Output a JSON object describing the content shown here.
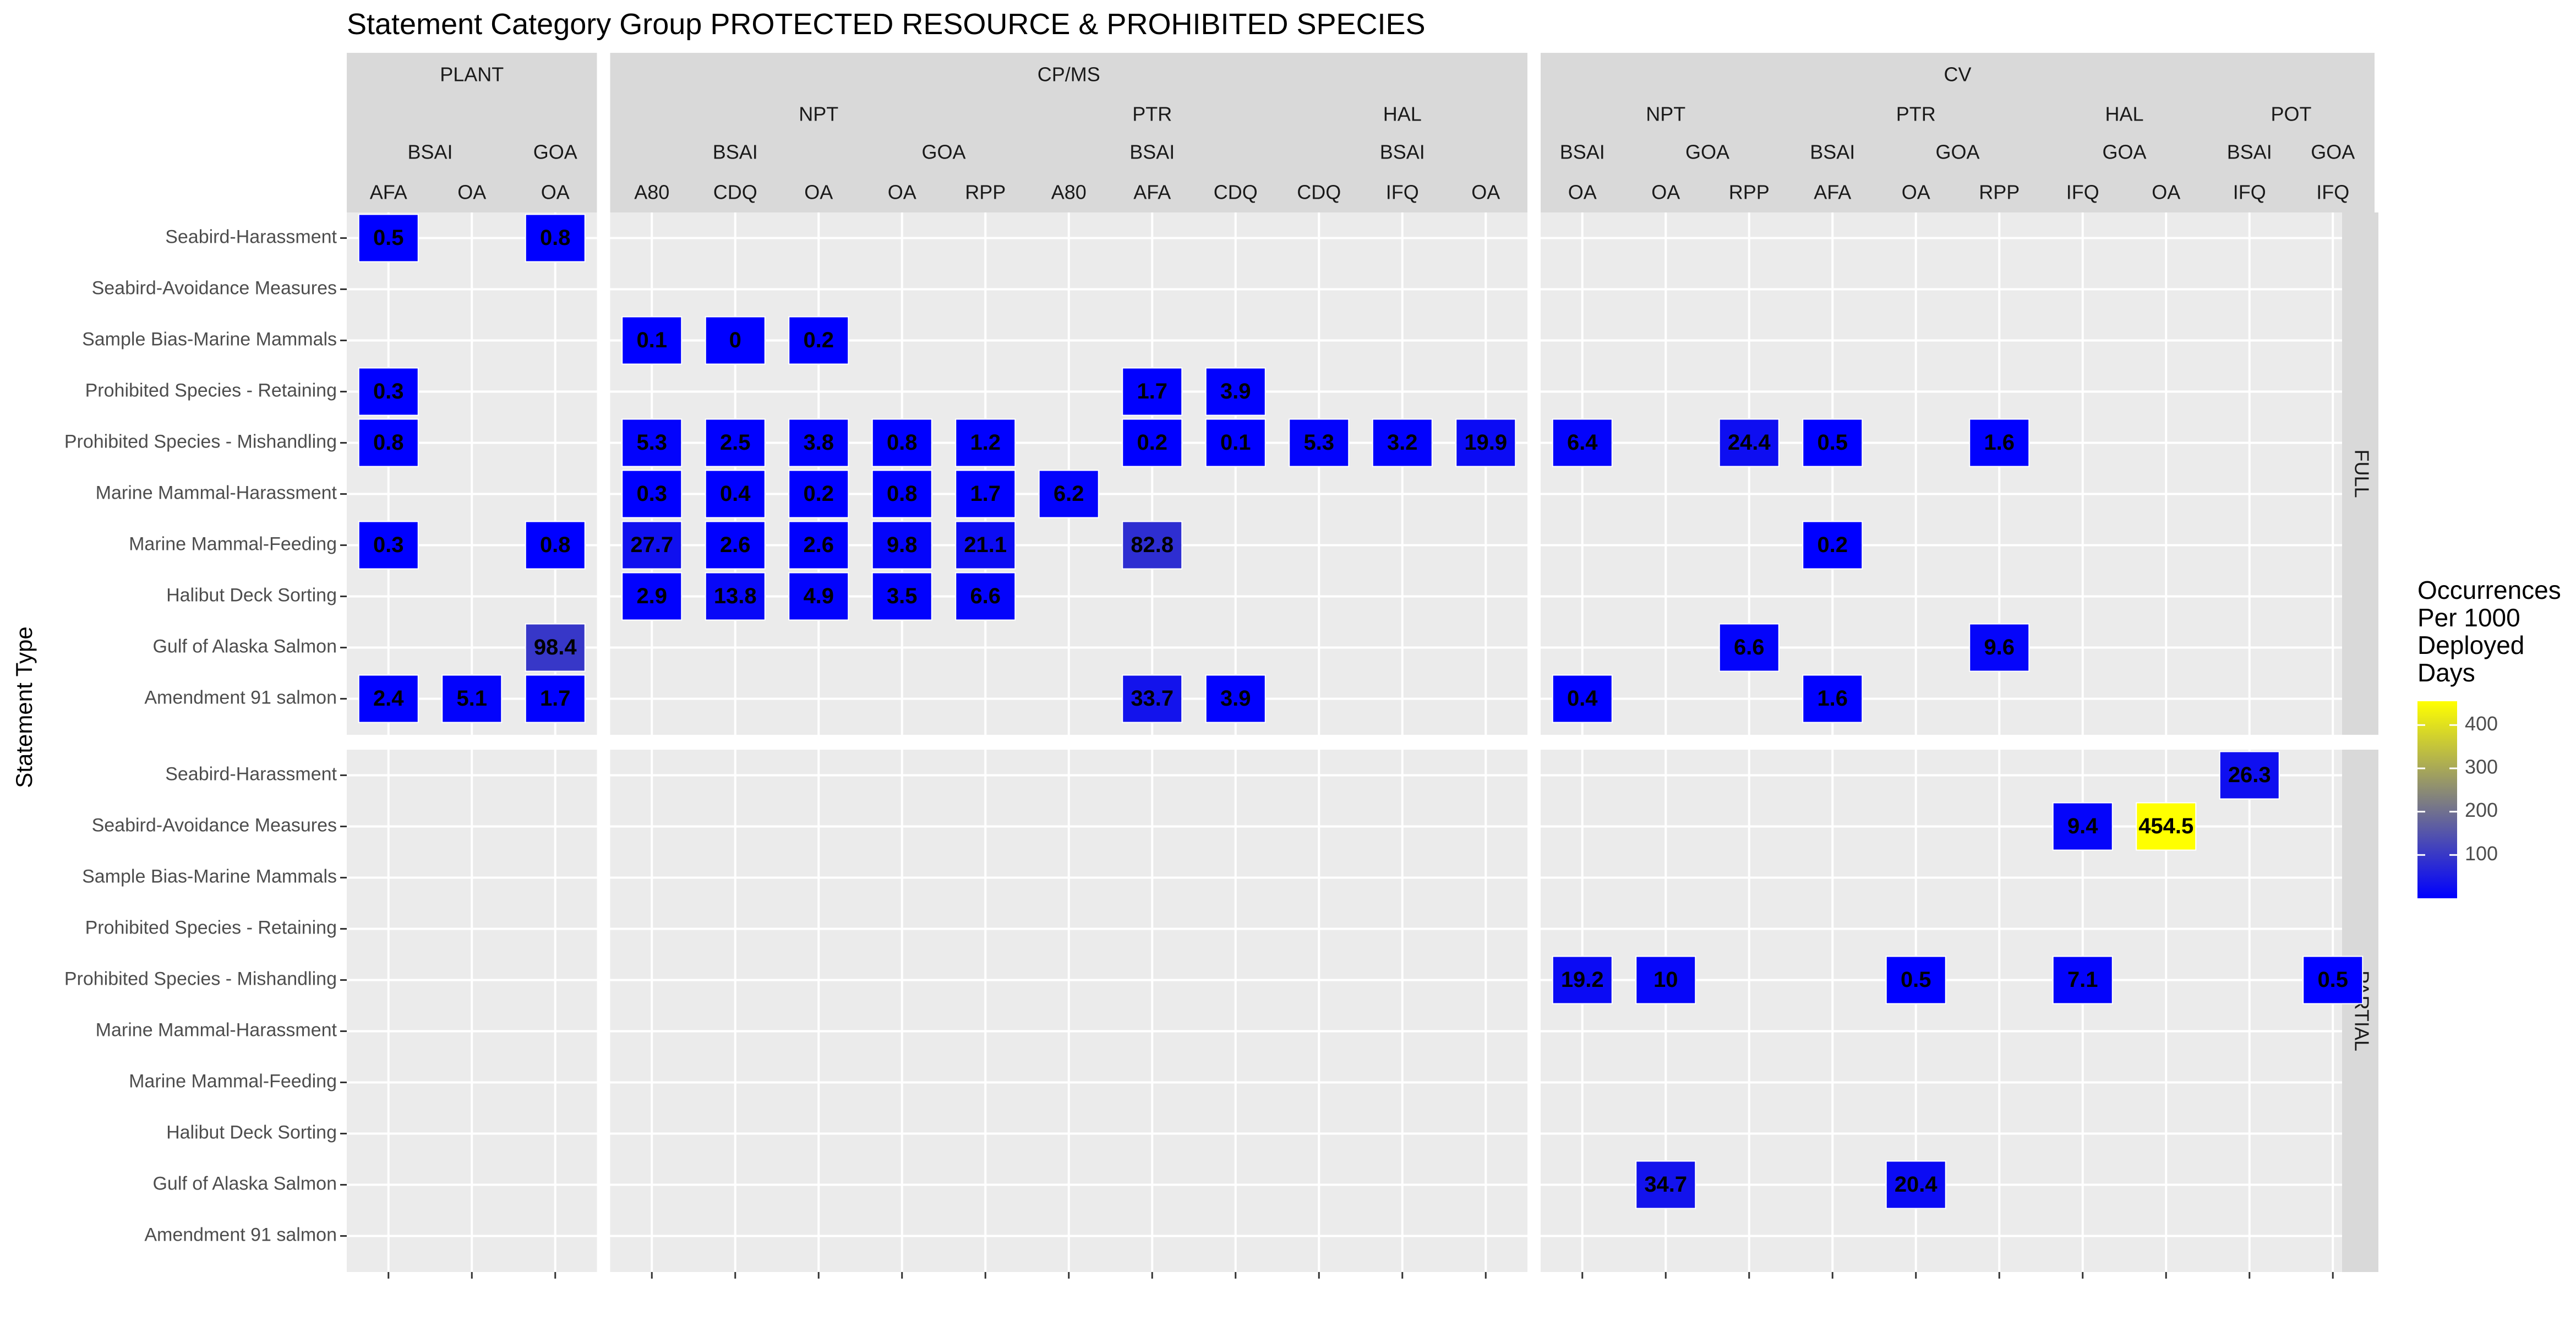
{
  "chart_data": {
    "type": "heatmap",
    "title": "Statement Category Group  PROTECTED RESOURCE & PROHIBITED SPECIES",
    "ylabel": "Statement Type",
    "xlabel": "",
    "legend": {
      "title_lines": [
        "Occurrences",
        "Per 1000",
        "Deployed",
        "Days"
      ],
      "ticks": [
        100,
        200,
        300,
        400
      ],
      "range": [
        0,
        455
      ],
      "colors": [
        "#0000ff",
        "#ffff00"
      ],
      "placement": "right"
    },
    "grid": true,
    "panels": [
      "FULL",
      "PARTIAL"
    ],
    "statement_types": [
      "Seabird-Harassment",
      "Seabird-Avoidance Measures",
      "Sample Bias-Marine Mammals",
      "Prohibited Species - Retaining",
      "Prohibited Species - Mishandling",
      "Marine Mammal-Harassment",
      "Marine Mammal-Feeding",
      "Halibut Deck Sorting",
      "Gulf of Alaska Salmon",
      "Amendment 91 salmon"
    ],
    "groups": [
      {
        "name": "PLANT",
        "subgroups": [
          {
            "name": "",
            "regions": [
              {
                "name": "BSAI",
                "codes": [
                  "AFA",
                  "OA"
                ]
              },
              {
                "name": "GOA",
                "codes": [
                  "OA"
                ]
              }
            ]
          }
        ]
      },
      {
        "name": "CP/MS",
        "subgroups": [
          {
            "name": "NPT",
            "regions": [
              {
                "name": "BSAI",
                "codes": [
                  "A80",
                  "CDQ",
                  "OA"
                ]
              },
              {
                "name": "GOA",
                "codes": [
                  "OA",
                  "RPP"
                ]
              }
            ]
          },
          {
            "name": "PTR",
            "regions": [
              {
                "name": "BSAI",
                "codes": [
                  "A80",
                  "AFA",
                  "CDQ"
                ]
              }
            ]
          },
          {
            "name": "HAL",
            "regions": [
              {
                "name": "BSAI",
                "codes": [
                  "CDQ",
                  "IFQ",
                  "OA"
                ]
              }
            ]
          }
        ]
      },
      {
        "name": "CV",
        "subgroups": [
          {
            "name": "NPT",
            "regions": [
              {
                "name": "BSAI",
                "codes": [
                  "OA"
                ]
              },
              {
                "name": "GOA",
                "codes": [
                  "OA",
                  "RPP"
                ]
              }
            ]
          },
          {
            "name": "PTR",
            "regions": [
              {
                "name": "BSAI",
                "codes": [
                  "AFA"
                ]
              },
              {
                "name": "GOA",
                "codes": [
                  "OA",
                  "RPP"
                ]
              }
            ]
          },
          {
            "name": "HAL",
            "regions": [
              {
                "name": "GOA",
                "codes": [
                  "IFQ",
                  "OA"
                ]
              }
            ]
          },
          {
            "name": "POT",
            "regions": [
              {
                "name": "BSAI",
                "codes": [
                  "IFQ"
                ]
              },
              {
                "name": "GOA",
                "codes": [
                  "IFQ"
                ]
              }
            ]
          }
        ]
      }
    ],
    "cells": [
      {
        "panel": "FULL",
        "row": 0,
        "col": 0,
        "value": 0.5
      },
      {
        "panel": "FULL",
        "row": 0,
        "col": 2,
        "value": 0.8
      },
      {
        "panel": "FULL",
        "row": 2,
        "col": 3,
        "value": 0.1
      },
      {
        "panel": "FULL",
        "row": 2,
        "col": 4,
        "value": 0
      },
      {
        "panel": "FULL",
        "row": 2,
        "col": 5,
        "value": 0.2
      },
      {
        "panel": "FULL",
        "row": 3,
        "col": 0,
        "value": 0.3
      },
      {
        "panel": "FULL",
        "row": 3,
        "col": 9,
        "value": 1.7
      },
      {
        "panel": "FULL",
        "row": 3,
        "col": 10,
        "value": 3.9
      },
      {
        "panel": "FULL",
        "row": 4,
        "col": 0,
        "value": 0.8
      },
      {
        "panel": "FULL",
        "row": 4,
        "col": 3,
        "value": 5.3
      },
      {
        "panel": "FULL",
        "row": 4,
        "col": 4,
        "value": 2.5
      },
      {
        "panel": "FULL",
        "row": 4,
        "col": 5,
        "value": 3.8
      },
      {
        "panel": "FULL",
        "row": 4,
        "col": 6,
        "value": 0.8
      },
      {
        "panel": "FULL",
        "row": 4,
        "col": 7,
        "value": 1.2
      },
      {
        "panel": "FULL",
        "row": 4,
        "col": 9,
        "value": 0.2
      },
      {
        "panel": "FULL",
        "row": 4,
        "col": 10,
        "value": 0.1
      },
      {
        "panel": "FULL",
        "row": 4,
        "col": 11,
        "value": 5.3
      },
      {
        "panel": "FULL",
        "row": 4,
        "col": 12,
        "value": 3.2
      },
      {
        "panel": "FULL",
        "row": 4,
        "col": 13,
        "value": 19.9
      },
      {
        "panel": "FULL",
        "row": 4,
        "col": 14,
        "value": 6.4
      },
      {
        "panel": "FULL",
        "row": 4,
        "col": 16,
        "value": 24.4
      },
      {
        "panel": "FULL",
        "row": 4,
        "col": 17,
        "value": 0.5
      },
      {
        "panel": "FULL",
        "row": 4,
        "col": 19,
        "value": 1.6
      },
      {
        "panel": "FULL",
        "row": 5,
        "col": 3,
        "value": 0.3
      },
      {
        "panel": "FULL",
        "row": 5,
        "col": 4,
        "value": 0.4
      },
      {
        "panel": "FULL",
        "row": 5,
        "col": 5,
        "value": 0.2
      },
      {
        "panel": "FULL",
        "row": 5,
        "col": 6,
        "value": 0.8
      },
      {
        "panel": "FULL",
        "row": 5,
        "col": 7,
        "value": 1.7
      },
      {
        "panel": "FULL",
        "row": 5,
        "col": 8,
        "value": 6.2
      },
      {
        "panel": "FULL",
        "row": 6,
        "col": 0,
        "value": 0.3
      },
      {
        "panel": "FULL",
        "row": 6,
        "col": 2,
        "value": 0.8
      },
      {
        "panel": "FULL",
        "row": 6,
        "col": 3,
        "value": 27.7
      },
      {
        "panel": "FULL",
        "row": 6,
        "col": 4,
        "value": 2.6
      },
      {
        "panel": "FULL",
        "row": 6,
        "col": 5,
        "value": 2.6
      },
      {
        "panel": "FULL",
        "row": 6,
        "col": 6,
        "value": 9.8
      },
      {
        "panel": "FULL",
        "row": 6,
        "col": 7,
        "value": 21.1
      },
      {
        "panel": "FULL",
        "row": 6,
        "col": 9,
        "value": 82.8
      },
      {
        "panel": "FULL",
        "row": 6,
        "col": 17,
        "value": 0.2
      },
      {
        "panel": "FULL",
        "row": 7,
        "col": 3,
        "value": 2.9
      },
      {
        "panel": "FULL",
        "row": 7,
        "col": 4,
        "value": 13.8
      },
      {
        "panel": "FULL",
        "row": 7,
        "col": 5,
        "value": 4.9
      },
      {
        "panel": "FULL",
        "row": 7,
        "col": 6,
        "value": 3.5
      },
      {
        "panel": "FULL",
        "row": 7,
        "col": 7,
        "value": 6.6
      },
      {
        "panel": "FULL",
        "row": 8,
        "col": 2,
        "value": 98.4
      },
      {
        "panel": "FULL",
        "row": 8,
        "col": 16,
        "value": 6.6
      },
      {
        "panel": "FULL",
        "row": 8,
        "col": 19,
        "value": 9.6
      },
      {
        "panel": "FULL",
        "row": 9,
        "col": 0,
        "value": 2.4
      },
      {
        "panel": "FULL",
        "row": 9,
        "col": 1,
        "value": 5.1
      },
      {
        "panel": "FULL",
        "row": 9,
        "col": 2,
        "value": 1.7
      },
      {
        "panel": "FULL",
        "row": 9,
        "col": 9,
        "value": 33.7
      },
      {
        "panel": "FULL",
        "row": 9,
        "col": 10,
        "value": 3.9
      },
      {
        "panel": "FULL",
        "row": 9,
        "col": 14,
        "value": 0.4
      },
      {
        "panel": "FULL",
        "row": 9,
        "col": 17,
        "value": 1.6
      },
      {
        "panel": "PARTIAL",
        "row": 0,
        "col": 22,
        "value": 26.3
      },
      {
        "panel": "PARTIAL",
        "row": 1,
        "col": 20,
        "value": 9.4
      },
      {
        "panel": "PARTIAL",
        "row": 1,
        "col": 21,
        "value": 454.5
      },
      {
        "panel": "PARTIAL",
        "row": 4,
        "col": 14,
        "value": 19.2
      },
      {
        "panel": "PARTIAL",
        "row": 4,
        "col": 15,
        "value": 10
      },
      {
        "panel": "PARTIAL",
        "row": 4,
        "col": 18,
        "value": 0.5
      },
      {
        "panel": "PARTIAL",
        "row": 4,
        "col": 20,
        "value": 7.1
      },
      {
        "panel": "PARTIAL",
        "row": 4,
        "col": 23,
        "value": 0.5
      },
      {
        "panel": "PARTIAL",
        "row": 8,
        "col": 15,
        "value": 34.7
      },
      {
        "panel": "PARTIAL",
        "row": 8,
        "col": 18,
        "value": 20.4
      }
    ]
  }
}
